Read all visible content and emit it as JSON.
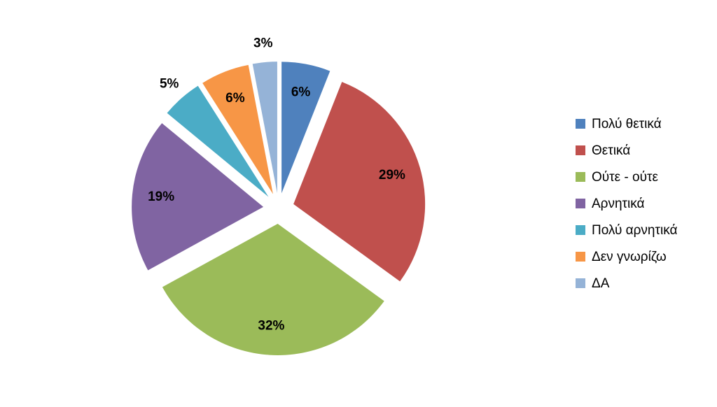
{
  "chart_data": {
    "type": "pie",
    "categories": [
      "Πολύ θετικά",
      "Θετικά",
      "Ούτε - ούτε",
      "Αρνητικά",
      "Πολύ αρνητικά",
      "Δεν γνωρίζω",
      "ΔΑ"
    ],
    "values": [
      6,
      29,
      32,
      19,
      5,
      6,
      3
    ],
    "value_labels": [
      "6%",
      "29%",
      "32%",
      "19%",
      "5%",
      "6%",
      "3%"
    ],
    "colors": [
      "#4F81BD",
      "#C0504D",
      "#9BBB59",
      "#8064A2",
      "#4BACC6",
      "#F79646",
      "#95B3D7"
    ],
    "legend": "right"
  }
}
